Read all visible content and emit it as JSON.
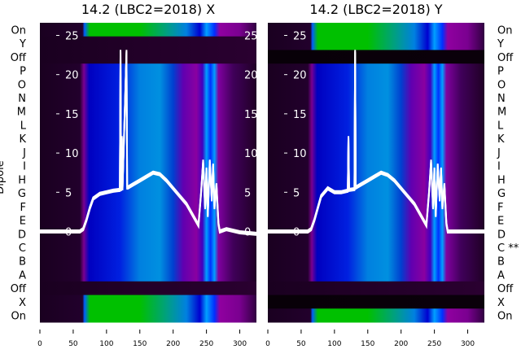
{
  "chart_data": [
    {
      "type": "heatmap",
      "title": "14.2 (LBC2=2018) X",
      "ylabel": "Dipole",
      "row_labels": [
        "On",
        "Y",
        "Off",
        "P",
        "O",
        "N",
        "M",
        "L",
        "K",
        "J",
        "I",
        "H",
        "G",
        "F",
        "E",
        "D",
        "C",
        "B",
        "A",
        "Off",
        "X",
        "On"
      ],
      "row_kinds": [
        "green",
        "dark",
        "dark",
        "blue",
        "blue",
        "blue",
        "blue",
        "blue",
        "blue",
        "blue",
        "blue",
        "blue",
        "blue",
        "blue",
        "blue",
        "blue",
        "blue",
        "blue",
        "blue",
        "dark",
        "green",
        "green"
      ],
      "x_ticks": [
        0,
        50,
        100,
        150,
        200,
        250,
        300
      ],
      "xlim": [
        0,
        325
      ],
      "overlay_ticks": [
        0,
        5,
        10,
        15,
        20,
        25
      ],
      "overlay_ylim": [
        -0.5,
        26.5
      ],
      "line": {
        "x": [
          0,
          60,
          65,
          70,
          75,
          80,
          90,
          100,
          110,
          120,
          121,
          122,
          123,
          124,
          130,
          131,
          132,
          140,
          150,
          160,
          170,
          180,
          190,
          200,
          210,
          220,
          230,
          238,
          242,
          245,
          248,
          250,
          252,
          255,
          258,
          260,
          262,
          265,
          268,
          270,
          280,
          300,
          325
        ],
        "y": [
          0,
          0,
          0.3,
          1.5,
          3,
          4.2,
          4.8,
          5,
          5.2,
          5.3,
          23,
          5.3,
          12,
          5.4,
          23,
          5.6,
          5.6,
          6,
          6.5,
          7,
          7.5,
          7.3,
          6.5,
          5.5,
          4.5,
          3.5,
          2,
          0.8,
          5,
          9,
          3,
          8,
          2,
          9,
          4,
          8.5,
          3,
          6,
          1,
          0,
          0.3,
          -0.1,
          -0.3
        ]
      }
    },
    {
      "type": "heatmap",
      "title": "14.2 (LBC2=2018) Y",
      "ylabel": "",
      "row_labels": [
        "On",
        "Y",
        "Off",
        "P",
        "O",
        "N",
        "M",
        "L",
        "K",
        "J",
        "I",
        "H",
        "G",
        "F",
        "E",
        "D",
        "C **",
        "B",
        "A",
        "Off",
        "X",
        "On"
      ],
      "row_kinds": [
        "green",
        "green",
        "black",
        "blue",
        "blue",
        "blue",
        "blue",
        "blue",
        "blue",
        "blue",
        "blue",
        "blue",
        "blue",
        "blue",
        "blue",
        "blue",
        "blue",
        "blue",
        "blue",
        "dark",
        "black",
        "green"
      ],
      "x_ticks": [
        0,
        50,
        100,
        150,
        200,
        250,
        300
      ],
      "xlim": [
        0,
        325
      ],
      "overlay_ticks": [
        0,
        5,
        10,
        15,
        20,
        25
      ],
      "overlay_ylim": [
        -0.5,
        26.5
      ],
      "line": {
        "x": [
          0,
          60,
          65,
          70,
          75,
          80,
          90,
          100,
          110,
          120,
          121,
          122,
          130,
          131,
          132,
          140,
          150,
          160,
          170,
          180,
          190,
          200,
          210,
          220,
          230,
          238,
          242,
          245,
          248,
          250,
          252,
          255,
          258,
          260,
          262,
          265,
          268,
          270,
          280,
          300,
          325
        ],
        "y": [
          0,
          0,
          0.3,
          1.5,
          3,
          4.5,
          5.5,
          5,
          5,
          5.2,
          12,
          5.3,
          5.4,
          23,
          5.6,
          6,
          6.5,
          7,
          7.5,
          7.2,
          6.5,
          5.5,
          4.5,
          3.5,
          2,
          0.8,
          5,
          9,
          3,
          8,
          2,
          8.5,
          4,
          8,
          3,
          6,
          1,
          0,
          0,
          0,
          0
        ]
      }
    }
  ],
  "colors": {
    "dark": "#1a0020",
    "black": "#080008",
    "line": "#ffffff"
  }
}
